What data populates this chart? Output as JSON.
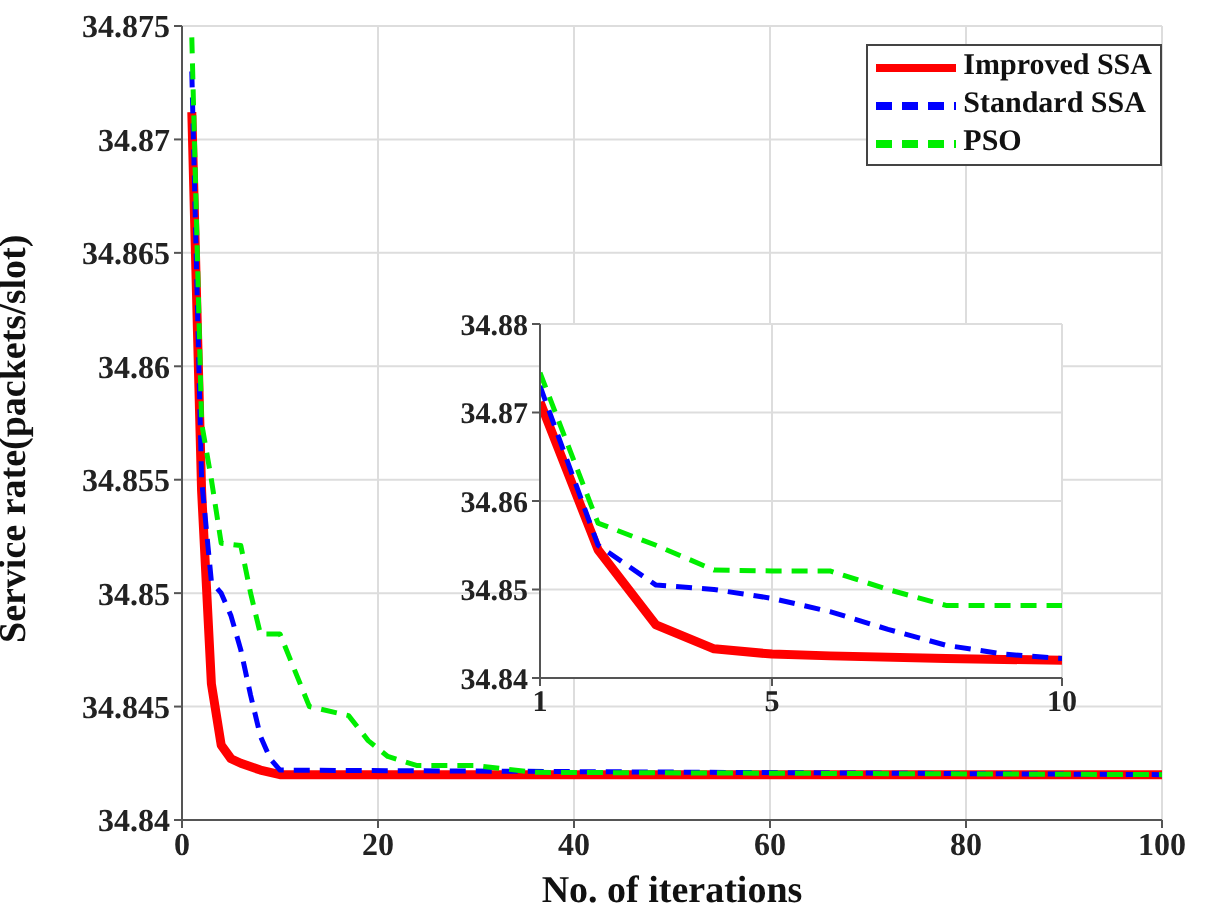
{
  "chart_data": [
    {
      "type": "line",
      "xlabel": "No. of iterations",
      "ylabel": "Service rate(packets/slot)",
      "xlim": [
        0,
        100
      ],
      "xticks": [
        0,
        20,
        40,
        60,
        80,
        100
      ],
      "ylim": [
        34.84,
        34.875
      ],
      "yticks": [
        34.84,
        34.845,
        34.85,
        34.855,
        34.86,
        34.865,
        34.87,
        34.875
      ],
      "grid": true,
      "legend": "top right",
      "marker": "none",
      "series": [
        {
          "name": "Improved SSA",
          "color": "#ff0000",
          "line_style": "solid",
          "x": [
            1,
            2,
            3,
            4,
            5,
            6,
            8,
            10,
            100
          ],
          "values": [
            34.8712,
            34.8545,
            34.846,
            34.8433,
            34.8427,
            34.8425,
            34.8422,
            34.842,
            34.842
          ]
        },
        {
          "name": "Standard SSA",
          "color": "#0000ff",
          "line_style": "dashed",
          "x": [
            1,
            2,
            3,
            4,
            5,
            6,
            7,
            8,
            9,
            10,
            100
          ],
          "values": [
            34.873,
            34.855,
            34.8505,
            34.85,
            34.849,
            34.8475,
            34.8455,
            34.8437,
            34.8427,
            34.8422,
            34.842
          ]
        },
        {
          "name": "PSO",
          "color": "#00ee00",
          "line_style": "dashed",
          "x": [
            1,
            2,
            3,
            4,
            6,
            7,
            8,
            10,
            13,
            17,
            19,
            21,
            24,
            30,
            36,
            100
          ],
          "values": [
            34.8745,
            34.8575,
            34.855,
            34.8522,
            34.8521,
            34.85,
            34.8482,
            34.8482,
            34.845,
            34.8446,
            34.8435,
            34.8428,
            34.8424,
            34.8424,
            34.8421,
            34.842
          ]
        }
      ]
    },
    {
      "type": "line",
      "xlim": [
        1,
        10
      ],
      "xticks": [
        1,
        5,
        10
      ],
      "ylim": [
        34.84,
        34.88
      ],
      "yticks": [
        34.84,
        34.85,
        34.86,
        34.87,
        34.88
      ],
      "grid": true,
      "marker": "none",
      "series": [
        {
          "color": "#ff0000",
          "line_style": "solid",
          "x": [
            1,
            2,
            3,
            4,
            5,
            6,
            8,
            10
          ],
          "values": [
            34.8712,
            34.8545,
            34.846,
            34.8433,
            34.8427,
            34.8425,
            34.8422,
            34.842
          ]
        },
        {
          "color": "#0000ff",
          "line_style": "dashed",
          "x": [
            1,
            2,
            3,
            4,
            5,
            6,
            7,
            8,
            9,
            10
          ],
          "values": [
            34.873,
            34.855,
            34.8505,
            34.85,
            34.849,
            34.8475,
            34.8455,
            34.8437,
            34.8427,
            34.8422
          ]
        },
        {
          "color": "#00ee00",
          "line_style": "dashed",
          "x": [
            1,
            2,
            3,
            4,
            5,
            6,
            7,
            8,
            9,
            10
          ],
          "values": [
            34.8745,
            34.8575,
            34.855,
            34.8522,
            34.8521,
            34.8521,
            34.85,
            34.8482,
            34.8482,
            34.8482
          ]
        }
      ]
    }
  ]
}
